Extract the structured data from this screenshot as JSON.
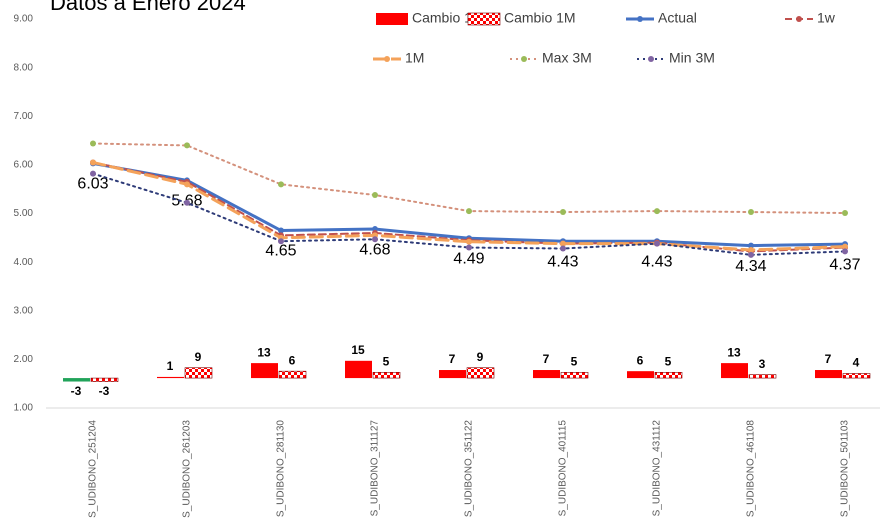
{
  "chart_data": {
    "type": "bar_line",
    "title": "Datos a Enero 2024",
    "categories": [
      "S_UDIBONO_251204",
      "S_UDIBONO_261203",
      "S_UDIBONO_281130",
      "S_UDIBONO_311127",
      "S_UDIBONO_351122",
      "S_UDIBONO_401115",
      "S_UDIBONO_431112",
      "S_UDIBONO_461108",
      "S_UDIBONO_501103"
    ],
    "ylim": [
      1,
      9
    ],
    "yticks": [
      {
        "value": 1,
        "label": "1.00"
      },
      {
        "value": 2,
        "label": "2.00"
      },
      {
        "value": 3,
        "label": "3.00"
      },
      {
        "value": 4,
        "label": "4.00"
      },
      {
        "value": 5,
        "label": "5.00"
      },
      {
        "value": 6,
        "label": "6.00"
      },
      {
        "value": 7,
        "label": "7.00"
      },
      {
        "value": 8,
        "label": "8.00"
      },
      {
        "value": 9,
        "label": "9.00"
      }
    ],
    "y2lim": [
      -26,
      312
    ],
    "series": [
      {
        "name": "Cambio 1w",
        "kind": "bar",
        "axis": "y2",
        "color": "#ff0000",
        "negative_color": "#21a35a",
        "pattern": "solid",
        "data_labels": true,
        "values": [
          -3,
          1,
          13,
          15,
          7,
          7,
          6,
          13,
          7
        ]
      },
      {
        "name": "Cambio 1M",
        "kind": "bar",
        "axis": "y2",
        "color": "#ff0000",
        "pattern": "checker",
        "data_labels": true,
        "values": [
          -3,
          9,
          6,
          5,
          9,
          5,
          5,
          3,
          4
        ]
      },
      {
        "name": "Actual",
        "kind": "line",
        "color": "#4472c4",
        "marker_color": "#4472c4",
        "dash": "solid",
        "width": 3,
        "data_labels": true,
        "values": [
          6.03,
          5.68,
          4.65,
          4.68,
          4.49,
          4.43,
          4.43,
          4.34,
          4.37
        ]
      },
      {
        "name": "1w",
        "kind": "line",
        "color": "#c0504d",
        "marker_color": "#c0504d",
        "dash": "dashed",
        "width": 2,
        "values": [
          6.05,
          5.65,
          4.55,
          4.6,
          4.45,
          4.38,
          4.4,
          4.22,
          4.3
        ]
      },
      {
        "name": "1M",
        "kind": "line",
        "color": "#f4a25a",
        "marker_color": "#f4a25a",
        "dash": "long",
        "width": 3,
        "values": [
          6.05,
          5.6,
          4.5,
          4.55,
          4.42,
          4.38,
          4.38,
          4.25,
          4.32
        ]
      },
      {
        "name": "Max 3M",
        "kind": "line",
        "color": "#d4917c",
        "marker_color": "#9bbb59",
        "dash": "dotted",
        "width": 2,
        "values": [
          6.44,
          6.4,
          5.6,
          5.38,
          5.05,
          5.03,
          5.05,
          5.03,
          5.01
        ]
      },
      {
        "name": "Min 3M",
        "kind": "line",
        "color": "#2e3b78",
        "marker_color": "#8064a2",
        "dash": "dotted",
        "width": 2,
        "values": [
          5.82,
          5.22,
          4.43,
          4.47,
          4.3,
          4.28,
          4.38,
          4.15,
          4.22
        ]
      }
    ]
  }
}
